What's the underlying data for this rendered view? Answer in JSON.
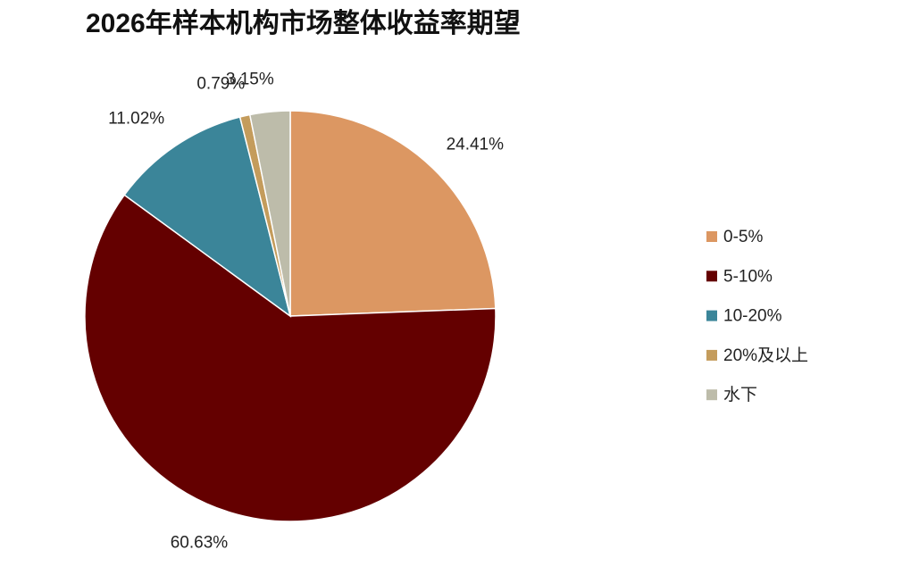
{
  "chart_data": {
    "type": "pie",
    "title": "2026年样本机构市场整体收益率期望",
    "categories": [
      "0-5%",
      "5-10%",
      "10-20%",
      "20%及以上",
      "水下"
    ],
    "values": [
      24.41,
      60.63,
      11.02,
      0.79,
      3.15
    ],
    "value_labels": [
      "24.41%",
      "60.63%",
      "11.02%",
      "0.79%",
      "3.15%"
    ],
    "colors": [
      "#dc9762",
      "#640000",
      "#3b8599",
      "#c49c5c",
      "#bdbcaa"
    ],
    "legend": "right"
  }
}
